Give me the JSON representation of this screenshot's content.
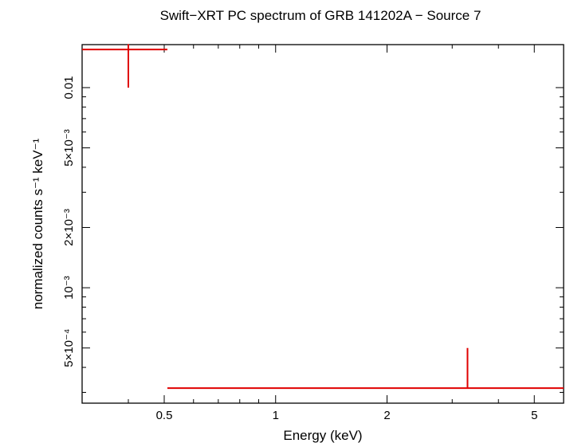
{
  "chart_data": {
    "type": "scatter",
    "title": "Swift−XRT PC spectrum of GRB 141202A − Source 7",
    "xlabel": "Energy (keV)",
    "ylabel": "normalized counts s⁻¹ keV⁻¹",
    "xscale": "log",
    "yscale": "log",
    "xlim": [
      0.3,
      6.0
    ],
    "ylim": [
      0.000265,
      0.0164
    ],
    "x_ticks": [
      {
        "value": 0.5,
        "label": "0.5"
      },
      {
        "value": 1,
        "label": "1"
      },
      {
        "value": 2,
        "label": "2"
      },
      {
        "value": 5,
        "label": "5"
      }
    ],
    "y_ticks": [
      {
        "value": 0.0005,
        "label": "5×10⁻⁴"
      },
      {
        "value": 0.001,
        "label": "10⁻³"
      },
      {
        "value": 0.002,
        "label": "2×10⁻³"
      },
      {
        "value": 0.005,
        "label": "5×10⁻³"
      },
      {
        "value": 0.01,
        "label": "0.01"
      }
    ],
    "color": "#e00000",
    "series": [
      {
        "points": [
          {
            "x": 0.4,
            "x_lo": 0.3,
            "x_hi": 0.51,
            "y": 0.0155,
            "y_lo": 0.01,
            "y_hi": 0.0165
          },
          {
            "x": 3.3,
            "x_lo": 0.51,
            "x_hi": 6.0,
            "y": 0.000315,
            "y_lo": 0.000315,
            "y_hi": 0.0005
          }
        ]
      }
    ],
    "grid": false,
    "legend": "none"
  }
}
